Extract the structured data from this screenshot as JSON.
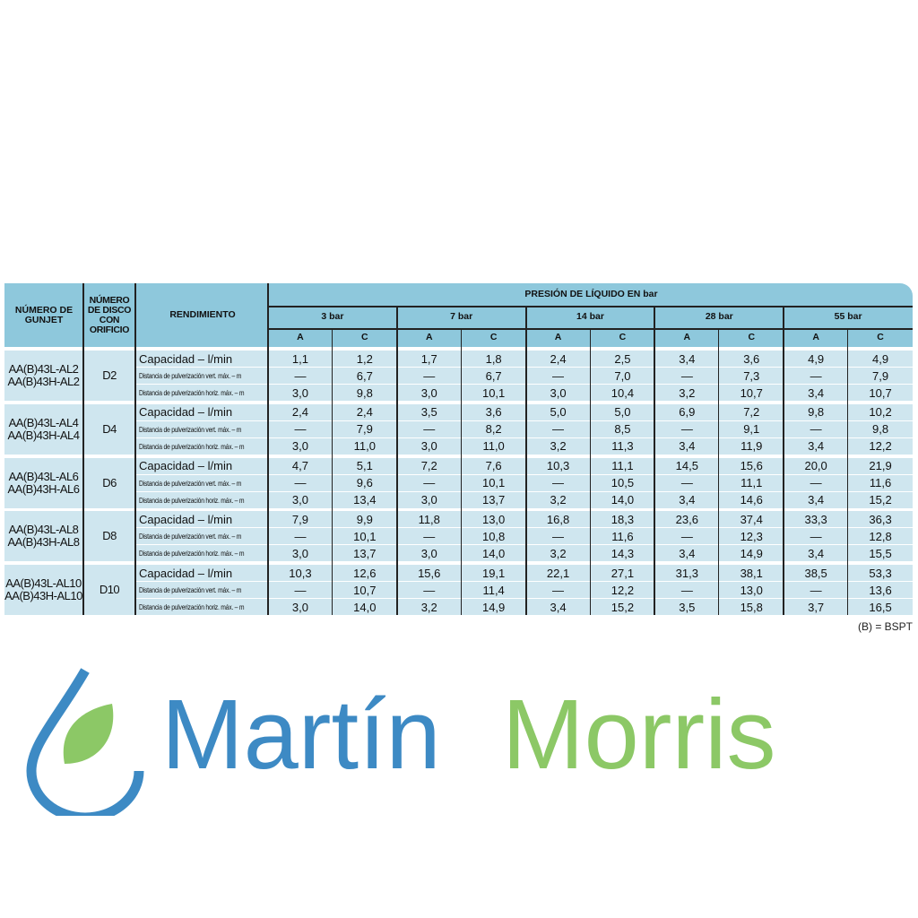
{
  "header": {
    "col_gunjet": "NÚMERO DE GUNJET",
    "col_disco": "NÚMERO DE DISCO CON ORIFICIO",
    "col_rendimiento": "RENDIMIENTO",
    "col_presion": "PRESIÓN DE LÍQUIDO EN bar",
    "pressures": [
      "3 bar",
      "7 bar",
      "14 bar",
      "28 bar",
      "55 bar"
    ],
    "sub": [
      "A",
      "C",
      "A",
      "C",
      "A",
      "C",
      "A",
      "C",
      "A",
      "C"
    ]
  },
  "row_labels": [
    "Capacidad – l/min",
    "Distancia de pulverización vert. máx. – m",
    "Distancia de pulverización horiz. máx. – m"
  ],
  "groups": [
    {
      "models": [
        "AA(B)43L-AL2",
        "AA(B)43H-AL2"
      ],
      "disc": "D2",
      "rows": [
        [
          "1,1",
          "1,2",
          "1,7",
          "1,8",
          "2,4",
          "2,5",
          "3,4",
          "3,6",
          "4,9",
          "4,9"
        ],
        [
          "—",
          "6,7",
          "—",
          "6,7",
          "—",
          "7,0",
          "—",
          "7,3",
          "—",
          "7,9"
        ],
        [
          "3,0",
          "9,8",
          "3,0",
          "10,1",
          "3,0",
          "10,4",
          "3,2",
          "10,7",
          "3,4",
          "10,7"
        ]
      ]
    },
    {
      "models": [
        "AA(B)43L-AL4",
        "AA(B)43H-AL4"
      ],
      "disc": "D4",
      "rows": [
        [
          "2,4",
          "2,4",
          "3,5",
          "3,6",
          "5,0",
          "5,0",
          "6,9",
          "7,2",
          "9,8",
          "10,2"
        ],
        [
          "—",
          "7,9",
          "—",
          "8,2",
          "—",
          "8,5",
          "—",
          "9,1",
          "—",
          "9,8"
        ],
        [
          "3,0",
          "11,0",
          "3,0",
          "11,0",
          "3,2",
          "11,3",
          "3,4",
          "11,9",
          "3,4",
          "12,2"
        ]
      ]
    },
    {
      "models": [
        "AA(B)43L-AL6",
        "AA(B)43H-AL6"
      ],
      "disc": "D6",
      "rows": [
        [
          "4,7",
          "5,1",
          "7,2",
          "7,6",
          "10,3",
          "11,1",
          "14,5",
          "15,6",
          "20,0",
          "21,9"
        ],
        [
          "—",
          "9,6",
          "—",
          "10,1",
          "—",
          "10,5",
          "—",
          "11,1",
          "—",
          "11,6"
        ],
        [
          "3,0",
          "13,4",
          "3,0",
          "13,7",
          "3,2",
          "14,0",
          "3,4",
          "14,6",
          "3,4",
          "15,2"
        ]
      ]
    },
    {
      "models": [
        "AA(B)43L-AL8",
        "AA(B)43H-AL8"
      ],
      "disc": "D8",
      "rows": [
        [
          "7,9",
          "9,9",
          "11,8",
          "13,0",
          "16,8",
          "18,3",
          "23,6",
          "37,4",
          "33,3",
          "36,3"
        ],
        [
          "—",
          "10,1",
          "—",
          "10,8",
          "—",
          "11,6",
          "—",
          "12,3",
          "—",
          "12,8"
        ],
        [
          "3,0",
          "13,7",
          "3,0",
          "14,0",
          "3,2",
          "14,3",
          "3,4",
          "14,9",
          "3,4",
          "15,5"
        ]
      ]
    },
    {
      "models": [
        "AA(B)43L-AL10",
        "AA(B)43H-AL10"
      ],
      "disc": "D10",
      "rows": [
        [
          "10,3",
          "12,6",
          "15,6",
          "19,1",
          "22,1",
          "27,1",
          "31,3",
          "38,1",
          "38,5",
          "53,3"
        ],
        [
          "—",
          "10,7",
          "—",
          "11,4",
          "—",
          "12,2",
          "—",
          "13,0",
          "—",
          "13,6"
        ],
        [
          "3,0",
          "14,0",
          "3,2",
          "14,9",
          "3,4",
          "15,2",
          "3,5",
          "15,8",
          "3,7",
          "16,5"
        ]
      ]
    }
  ],
  "footnote": "(B) = BSPT",
  "watermark": {
    "part1": "Martín",
    "part2": "Morris",
    "color1": "#3d8ac4",
    "color2": "#8cc866"
  }
}
